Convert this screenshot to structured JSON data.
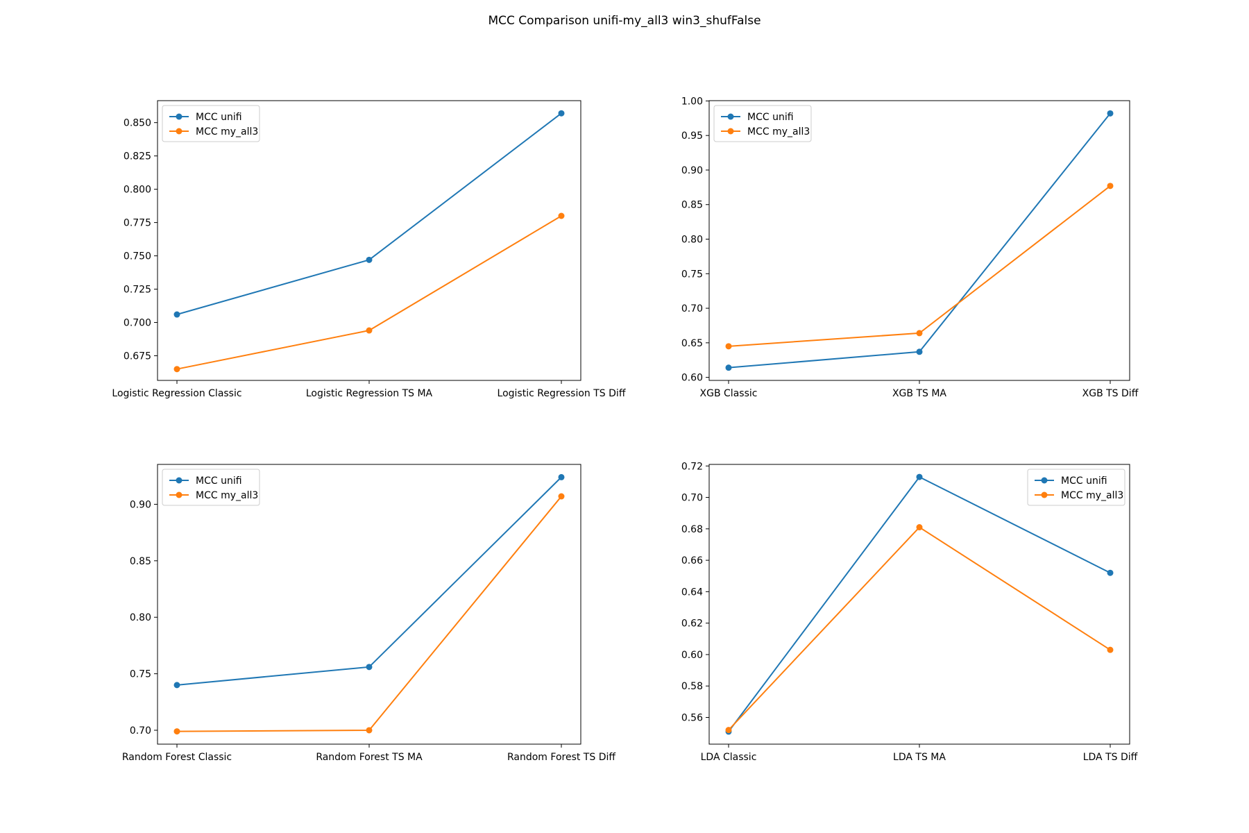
{
  "figure": {
    "title": "MCC Comparison unifi-my_all3 win3_shufFalse"
  },
  "colors": {
    "unifi": "#1f77b4",
    "my_all3": "#ff7f0e",
    "axis": "#000000",
    "legend_border": "#cccccc"
  },
  "chart_data": [
    {
      "type": "line",
      "categories": [
        "Logistic Regression Classic",
        "Logistic Regression TS MA",
        "Logistic Regression TS Diff"
      ],
      "series": [
        {
          "name": "MCC unifi",
          "color_key": "unifi",
          "values": [
            0.706,
            0.747,
            0.857
          ]
        },
        {
          "name": "MCC my_all3",
          "color_key": "my_all3",
          "values": [
            0.665,
            0.694,
            0.78
          ]
        }
      ],
      "ylim": [
        0.6565,
        0.8665
      ],
      "yticks": [
        0.675,
        0.7,
        0.725,
        0.75,
        0.775,
        0.8,
        0.825,
        0.85
      ],
      "ytick_labels": [
        "0.675",
        "0.700",
        "0.725",
        "0.750",
        "0.775",
        "0.800",
        "0.825",
        "0.850"
      ],
      "legend": "upper-left",
      "grid": false,
      "xlabel": "",
      "ylabel": ""
    },
    {
      "type": "line",
      "categories": [
        "XGB Classic",
        "XGB TS MA",
        "XGB TS Diff"
      ],
      "series": [
        {
          "name": "MCC unifi",
          "color_key": "unifi",
          "values": [
            0.614,
            0.637,
            0.982
          ]
        },
        {
          "name": "MCC my_all3",
          "color_key": "my_all3",
          "values": [
            0.645,
            0.664,
            0.877
          ]
        }
      ],
      "ylim": [
        0.5956,
        1.0004
      ],
      "yticks": [
        0.6,
        0.65,
        0.7,
        0.75,
        0.8,
        0.85,
        0.9,
        0.95,
        1.0
      ],
      "ytick_labels": [
        "0.60",
        "0.65",
        "0.70",
        "0.75",
        "0.80",
        "0.85",
        "0.90",
        "0.95",
        "1.00"
      ],
      "legend": "upper-left",
      "grid": false,
      "xlabel": "",
      "ylabel": ""
    },
    {
      "type": "line",
      "categories": [
        "Random Forest Classic",
        "Random Forest TS MA",
        "Random Forest TS Diff"
      ],
      "series": [
        {
          "name": "MCC unifi",
          "color_key": "unifi",
          "values": [
            0.74,
            0.756,
            0.924
          ]
        },
        {
          "name": "MCC my_all3",
          "color_key": "my_all3",
          "values": [
            0.699,
            0.7,
            0.907
          ]
        }
      ],
      "ylim": [
        0.6877,
        0.9353
      ],
      "yticks": [
        0.7,
        0.75,
        0.8,
        0.85,
        0.9
      ],
      "ytick_labels": [
        "0.70",
        "0.75",
        "0.80",
        "0.85",
        "0.90"
      ],
      "legend": "upper-left",
      "grid": false,
      "xlabel": "",
      "ylabel": ""
    },
    {
      "type": "line",
      "categories": [
        "LDA Classic",
        "LDA TS MA",
        "LDA TS Diff"
      ],
      "series": [
        {
          "name": "MCC unifi",
          "color_key": "unifi",
          "values": [
            0.551,
            0.713,
            0.652
          ]
        },
        {
          "name": "MCC my_all3",
          "color_key": "my_all3",
          "values": [
            0.552,
            0.681,
            0.603
          ]
        }
      ],
      "ylim": [
        0.543,
        0.721
      ],
      "yticks": [
        0.56,
        0.58,
        0.6,
        0.62,
        0.64,
        0.66,
        0.68,
        0.7,
        0.72
      ],
      "ytick_labels": [
        "0.56",
        "0.58",
        "0.60",
        "0.62",
        "0.64",
        "0.66",
        "0.68",
        "0.70",
        "0.72"
      ],
      "legend": "upper-right",
      "grid": false,
      "xlabel": "",
      "ylabel": ""
    }
  ]
}
